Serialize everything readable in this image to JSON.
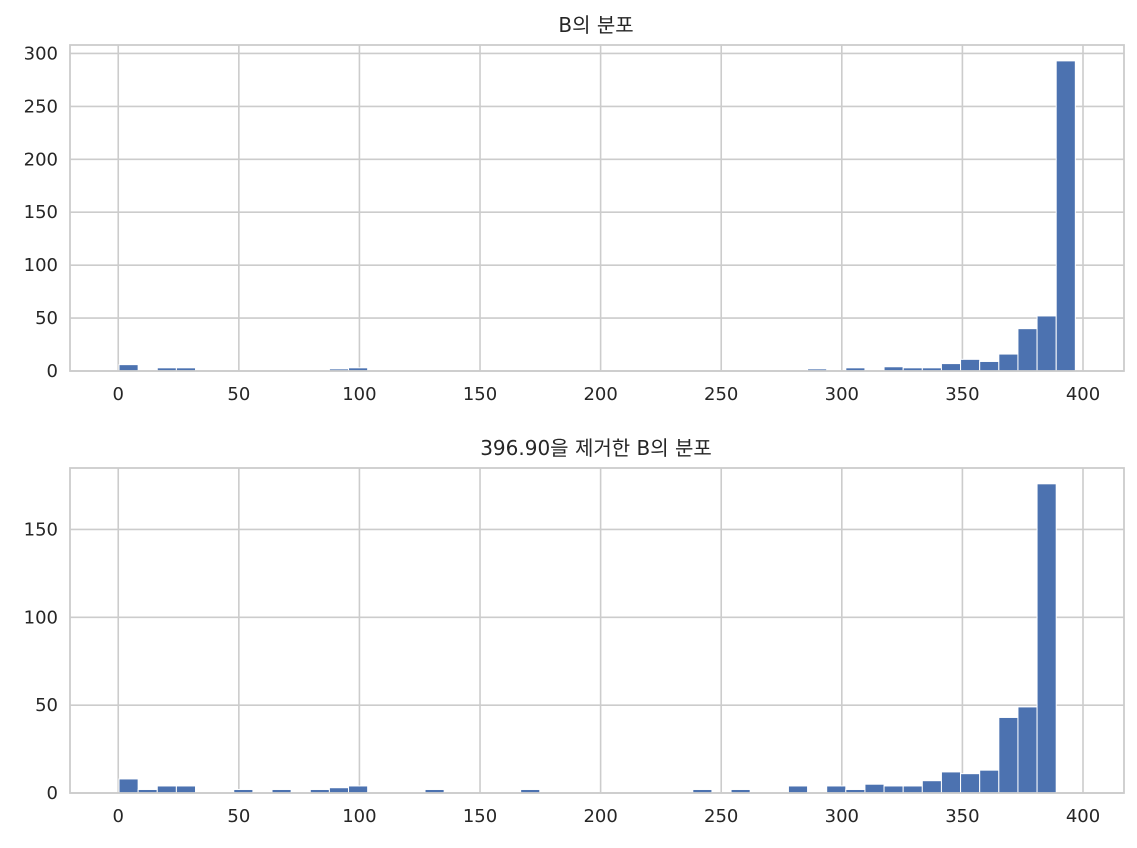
{
  "chart_data": [
    {
      "type": "bar",
      "title": "B의 분포",
      "xlabel": "",
      "ylabel": "",
      "xlim": [
        -20,
        417
      ],
      "ylim": [
        0,
        308
      ],
      "grid": true,
      "xticks": [
        0,
        50,
        100,
        150,
        200,
        250,
        300,
        350,
        400
      ],
      "yticks": [
        0,
        50,
        100,
        150,
        200,
        250,
        300
      ],
      "bin_start": 0.32,
      "bin_width": 7.93,
      "series": [
        {
          "values": [
            6,
            0,
            3,
            3,
            0,
            0,
            0,
            0,
            0,
            0,
            0,
            2,
            3,
            0,
            0,
            0,
            0,
            0,
            0,
            0,
            0,
            0,
            0,
            0,
            0,
            0,
            0,
            0,
            0,
            0,
            0,
            0,
            0,
            0,
            0,
            0,
            2,
            0,
            3,
            0,
            4,
            3,
            3,
            7,
            11,
            9,
            16,
            40,
            52,
            293
          ]
        }
      ]
    },
    {
      "type": "bar",
      "title": "396.90을 제거한 B의 분포",
      "xlabel": "",
      "ylabel": "",
      "xlim": [
        -20,
        417
      ],
      "ylim": [
        0,
        185
      ],
      "grid": true,
      "xticks": [
        0,
        50,
        100,
        150,
        200,
        250,
        300,
        350,
        400
      ],
      "yticks": [
        0,
        50,
        100,
        150
      ],
      "bin_start": 0.32,
      "bin_width": 7.93,
      "series": [
        {
          "values": [
            8,
            2,
            4,
            4,
            0,
            0,
            2,
            0,
            2,
            0,
            2,
            3,
            4,
            0,
            0,
            0,
            2,
            0,
            0,
            0,
            0,
            2,
            0,
            0,
            0,
            0,
            0,
            0,
            0,
            0,
            2,
            0,
            2,
            0,
            0,
            4,
            0,
            4,
            2,
            5,
            4,
            4,
            7,
            12,
            11,
            13,
            43,
            49,
            176,
            0
          ]
        }
      ]
    }
  ]
}
